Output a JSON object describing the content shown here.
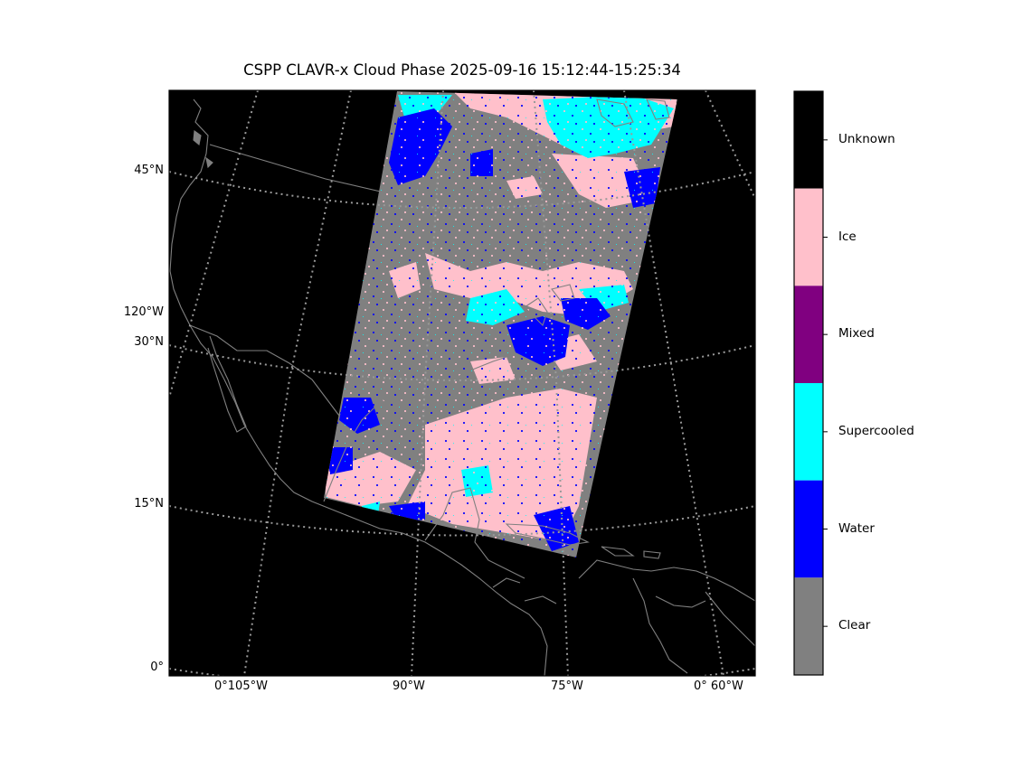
{
  "title": "CSPP CLAVR-x Cloud Phase 2025-09-16 15:12:44-15:25:34",
  "lat_labels": [
    "45°N",
    "120°W",
    "30°N",
    "15°N",
    "0°"
  ],
  "lon_labels": [
    "0°105°W",
    "90°W",
    "75°W",
    "0° 60°W"
  ],
  "legend": {
    "categories": [
      {
        "name": "Unknown",
        "color": "#000000"
      },
      {
        "name": "Ice",
        "color": "#ffc0cb"
      },
      {
        "name": "Mixed",
        "color": "#800080"
      },
      {
        "name": "Supercooled",
        "color": "#00ffff"
      },
      {
        "name": "Water",
        "color": "#0000ff"
      },
      {
        "name": "Clear",
        "color": "#808080"
      }
    ]
  },
  "colors": {
    "background": "#000000",
    "coastline": "#808080",
    "graticule": "#999999"
  }
}
